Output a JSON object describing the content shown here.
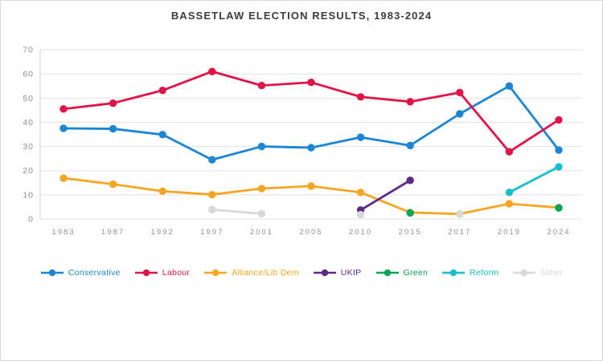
{
  "title": "BASSETLAW ELECTION RESULTS, 1983-2024",
  "chart_data": {
    "type": "line",
    "categories": [
      "1983",
      "1987",
      "1992",
      "1997",
      "2001",
      "2005",
      "2010",
      "2015",
      "2017",
      "2019",
      "2024"
    ],
    "series": [
      {
        "name": "Conservative",
        "color": "#1a86d4",
        "values": [
          37.5,
          37.3,
          34.9,
          24.5,
          30.0,
          29.5,
          33.8,
          30.4,
          43.5,
          55.0,
          28.5
        ]
      },
      {
        "name": "Labour",
        "color": "#e11448",
        "values": [
          45.5,
          47.9,
          53.2,
          61.0,
          55.2,
          56.5,
          50.5,
          48.5,
          52.3,
          27.8,
          41.0
        ]
      },
      {
        "name": "Alliance/Lib Dem",
        "color": "#f6a623",
        "values": [
          16.9,
          14.4,
          11.5,
          10.1,
          12.6,
          13.6,
          11.0,
          2.7,
          2.1,
          6.3,
          4.7
        ]
      },
      {
        "name": "UKIP",
        "color": "#5e2a86",
        "values": [
          null,
          null,
          null,
          null,
          null,
          null,
          3.7,
          16.0,
          null,
          null,
          null
        ]
      },
      {
        "name": "Green",
        "color": "#0aa45a",
        "values": [
          null,
          null,
          null,
          null,
          null,
          null,
          null,
          2.5,
          null,
          null,
          4.6
        ]
      },
      {
        "name": "Reform",
        "color": "#17bfca",
        "values": [
          null,
          null,
          null,
          null,
          null,
          null,
          null,
          null,
          null,
          11.0,
          21.6
        ]
      },
      {
        "name": "Other",
        "color": "#d8d8d8",
        "values": [
          null,
          null,
          null,
          3.9,
          2.2,
          null,
          1.8,
          null,
          2.2,
          null,
          null
        ]
      }
    ],
    "title": "BASSETLAW ELECTION RESULTS, 1983-2024",
    "xlabel": "",
    "ylabel": "",
    "ylim": [
      0,
      70
    ],
    "ytick_step": 10,
    "grid": true,
    "legend_position": "bottom"
  },
  "axis": {
    "y_ticks": [
      "0",
      "10",
      "20",
      "30",
      "40",
      "50",
      "60",
      "70"
    ],
    "tick_color": "#8f8f8f",
    "grid_color": "#e0e0e0",
    "axis_line_color": "#cfcfcf"
  }
}
